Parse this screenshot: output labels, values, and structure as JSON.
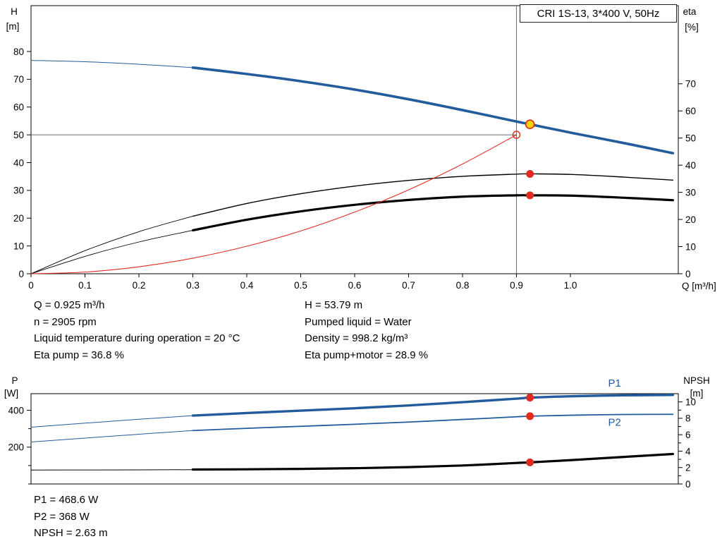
{
  "title_box": {
    "label": "CRI 1S-13, 3*400 V, 50Hz"
  },
  "info_panel": {
    "left": [
      "Q = 0.925 m³/h",
      "n = 2905 rpm",
      "Liquid temperature during operation = 20 °C",
      "Eta pump = 36.8 %"
    ],
    "right": [
      "H = 53.79 m",
      "Pumped liquid = Water",
      "Density = 998.2 kg/m³",
      "Eta pump+motor = 28.9 %"
    ]
  },
  "results_panel": [
    "P1 = 468.6 W",
    "P2 = 368 W",
    "NPSH = 2.63 m"
  ],
  "colors": {
    "curve_blue": "#235c9c",
    "curve_black": "#000000",
    "curve_red": "#e02b20",
    "marker_red": "#e02b20",
    "marker_yellow": "#ffd400",
    "crosshair_gray": "#6e6e6e",
    "axis_black": "#000000"
  },
  "chart_data": [
    {
      "type": "line",
      "name": "qh-eta-chart",
      "title": "CRI 1S-13, 3*400 V, 50Hz",
      "x_axis": {
        "label": "Q [m³/h]",
        "min": 0,
        "max": 1.2,
        "ticks": [
          0,
          0.1,
          0.2,
          0.3,
          0.4,
          0.5,
          0.6,
          0.7,
          0.8,
          0.9,
          1.0
        ],
        "tick_labels": [
          "0",
          "0.1",
          "0.2",
          "0.3",
          "0.4",
          "0.5",
          "0.6",
          "0.7",
          "0.8",
          "0.9",
          "1.0"
        ]
      },
      "y_left": {
        "label": "H",
        "unit": "[m]",
        "min": 0,
        "max": 96.5,
        "ticks": [
          0,
          10,
          20,
          30,
          40,
          50,
          60,
          70,
          80
        ],
        "tick_labels": [
          "0",
          "10",
          "20",
          "30",
          "40",
          "50",
          "60",
          "70",
          "80"
        ]
      },
      "y_right": {
        "label": "eta",
        "unit": "[%]",
        "min": 0,
        "max": 98.8,
        "ticks": [
          0,
          10,
          20,
          30,
          40,
          50,
          60,
          70
        ],
        "tick_labels": [
          "0",
          "10",
          "20",
          "30",
          "40",
          "50",
          "60",
          "70"
        ]
      },
      "series": [
        {
          "name": "hq-curve-lead",
          "axis": "left",
          "color": "#235c9c",
          "width": 1,
          "points": [
            [
              0,
              76.8
            ],
            [
              0.1,
              76.3
            ],
            [
              0.2,
              75.4
            ],
            [
              0.3,
              74.2
            ]
          ]
        },
        {
          "name": "hq-curve",
          "axis": "left",
          "color": "#235c9c",
          "width": 3.6,
          "points": [
            [
              0.3,
              74.2
            ],
            [
              0.4,
              71.9
            ],
            [
              0.5,
              69.3
            ],
            [
              0.6,
              66.3
            ],
            [
              0.7,
              62.8
            ],
            [
              0.8,
              58.9
            ],
            [
              0.9,
              54.8
            ],
            [
              0.925,
              53.79
            ],
            [
              1.0,
              50.8
            ],
            [
              1.1,
              47.0
            ],
            [
              1.19,
              43.4
            ]
          ]
        },
        {
          "name": "eta-pump-curve-lead",
          "axis": "right",
          "color": "#000000",
          "width": 0.9,
          "points": [
            [
              0,
              0
            ],
            [
              0.1,
              8.5
            ],
            [
              0.2,
              15.5
            ],
            [
              0.3,
              21.2
            ]
          ]
        },
        {
          "name": "eta-pump-curve",
          "axis": "right",
          "color": "#000000",
          "width": 1.4,
          "points": [
            [
              0.3,
              21.2
            ],
            [
              0.4,
              25.9
            ],
            [
              0.5,
              29.5
            ],
            [
              0.6,
              32.3
            ],
            [
              0.7,
              34.4
            ],
            [
              0.8,
              35.9
            ],
            [
              0.9,
              36.7
            ],
            [
              0.925,
              36.8
            ],
            [
              1.0,
              36.6
            ],
            [
              1.1,
              35.6
            ],
            [
              1.19,
              34.5
            ]
          ]
        },
        {
          "name": "eta-pump-motor-curve-lead",
          "axis": "right",
          "color": "#000000",
          "width": 0.9,
          "points": [
            [
              0,
              0
            ],
            [
              0.1,
              6.4
            ],
            [
              0.2,
              11.7
            ],
            [
              0.3,
              16.0
            ]
          ]
        },
        {
          "name": "eta-pump-motor-curve",
          "axis": "right",
          "color": "#000000",
          "width": 3.2,
          "points": [
            [
              0.3,
              16.0
            ],
            [
              0.4,
              19.9
            ],
            [
              0.5,
              23.0
            ],
            [
              0.6,
              25.4
            ],
            [
              0.7,
              27.2
            ],
            [
              0.8,
              28.4
            ],
            [
              0.9,
              28.9
            ],
            [
              0.925,
              28.9
            ],
            [
              1.0,
              28.8
            ],
            [
              1.1,
              28.0
            ],
            [
              1.19,
              27.1
            ]
          ]
        },
        {
          "name": "system-curve",
          "axis": "left",
          "color": "#e02b20",
          "width": 1.1,
          "points": [
            [
              0,
              0
            ],
            [
              0.1,
              0.6
            ],
            [
              0.2,
              2.5
            ],
            [
              0.3,
              5.6
            ],
            [
              0.4,
              9.9
            ],
            [
              0.5,
              15.4
            ],
            [
              0.6,
              22.2
            ],
            [
              0.7,
              30.2
            ],
            [
              0.8,
              39.5
            ],
            [
              0.9,
              50.0
            ]
          ]
        }
      ],
      "markers": [
        {
          "name": "requested-duty-point",
          "axis": "left",
          "q": 0.9,
          "value": 50.0,
          "style": "open"
        },
        {
          "name": "duty-point",
          "axis": "left",
          "q": 0.925,
          "value": 53.79,
          "style": "yellow"
        },
        {
          "name": "eta-pump-point",
          "axis": "right",
          "q": 0.925,
          "value": 36.8,
          "style": "red"
        },
        {
          "name": "eta-pump-motor-point",
          "axis": "right",
          "q": 0.925,
          "value": 28.9,
          "style": "red"
        }
      ],
      "crosshair": {
        "q": 0.9,
        "value": 50.0,
        "axis": "left"
      },
      "annotations": []
    },
    {
      "type": "line",
      "name": "power-npsh-chart",
      "title": "",
      "x_axis": {
        "label": "",
        "min": 0,
        "max": 1.2,
        "ticks": [],
        "tick_labels": []
      },
      "y_left": {
        "label": "P",
        "unit": "[W]",
        "min": 0,
        "max": 490,
        "ticks": [
          0,
          100,
          200,
          300,
          400
        ],
        "tick_labels": [
          "",
          "",
          "200",
          "",
          "400"
        ]
      },
      "y_right": {
        "label": "NPSH",
        "unit": "[m]",
        "min": 0,
        "max": 11,
        "ticks": [
          0,
          1,
          2,
          3,
          4,
          5,
          6,
          7,
          8,
          9,
          10
        ],
        "tick_labels": [
          "0",
          "",
          "2",
          "",
          "4",
          "",
          "6",
          "",
          "8",
          "",
          "10"
        ]
      },
      "series": [
        {
          "name": "p1-curve-lead",
          "axis": "left",
          "color": "#235c9c",
          "width": 1,
          "points": [
            [
              0,
              308
            ],
            [
              0.1,
              330
            ],
            [
              0.2,
              351
            ],
            [
              0.3,
              371
            ]
          ]
        },
        {
          "name": "p1-curve",
          "axis": "left",
          "color": "#235c9c",
          "width": 3.4,
          "points": [
            [
              0.3,
              371
            ],
            [
              0.4,
              385
            ],
            [
              0.5,
              398
            ],
            [
              0.6,
              411
            ],
            [
              0.7,
              426
            ],
            [
              0.8,
              444
            ],
            [
              0.9,
              463
            ],
            [
              0.925,
              468.6
            ],
            [
              1.0,
              476
            ],
            [
              1.1,
              481
            ],
            [
              1.19,
              483
            ]
          ]
        },
        {
          "name": "p2-curve-lead",
          "axis": "left",
          "color": "#235c9c",
          "width": 1,
          "points": [
            [
              0,
              228
            ],
            [
              0.1,
              249
            ],
            [
              0.2,
              270
            ],
            [
              0.3,
              290
            ]
          ]
        },
        {
          "name": "p2-curve",
          "axis": "left",
          "color": "#235c9c",
          "width": 1.8,
          "points": [
            [
              0.3,
              290
            ],
            [
              0.4,
              302
            ],
            [
              0.5,
              313
            ],
            [
              0.6,
              324
            ],
            [
              0.7,
              336
            ],
            [
              0.8,
              350
            ],
            [
              0.9,
              364.5
            ],
            [
              0.925,
              368
            ],
            [
              1.0,
              373
            ],
            [
              1.1,
              377
            ],
            [
              1.19,
              378
            ]
          ]
        },
        {
          "name": "npsh-curve-lead",
          "axis": "right",
          "color": "#000000",
          "width": 1,
          "points": [
            [
              0,
              1.7
            ],
            [
              0.1,
              1.71
            ],
            [
              0.2,
              1.72
            ],
            [
              0.3,
              1.74
            ]
          ]
        },
        {
          "name": "npsh-curve",
          "axis": "right",
          "color": "#000000",
          "width": 3.2,
          "points": [
            [
              0.3,
              1.76
            ],
            [
              0.4,
              1.79
            ],
            [
              0.5,
              1.84
            ],
            [
              0.6,
              1.92
            ],
            [
              0.7,
              2.05
            ],
            [
              0.8,
              2.25
            ],
            [
              0.9,
              2.56
            ],
            [
              0.925,
              2.63
            ],
            [
              1.0,
              2.9
            ],
            [
              1.1,
              3.3
            ],
            [
              1.19,
              3.65
            ]
          ]
        }
      ],
      "markers": [
        {
          "name": "p1-point",
          "axis": "left",
          "q": 0.925,
          "value": 468.6,
          "style": "red"
        },
        {
          "name": "p2-point",
          "axis": "left",
          "q": 0.925,
          "value": 368,
          "style": "red"
        },
        {
          "name": "npsh-point",
          "axis": "right",
          "q": 0.925,
          "value": 2.63,
          "style": "red"
        }
      ],
      "annotations": [
        {
          "label": "P1",
          "axis": "left",
          "q": 1.07,
          "value": 483,
          "dy": -12,
          "color": "#235c9c"
        },
        {
          "label": "P2",
          "axis": "left",
          "q": 1.07,
          "value": 378,
          "dy": 16,
          "color": "#235c9c"
        }
      ]
    }
  ]
}
